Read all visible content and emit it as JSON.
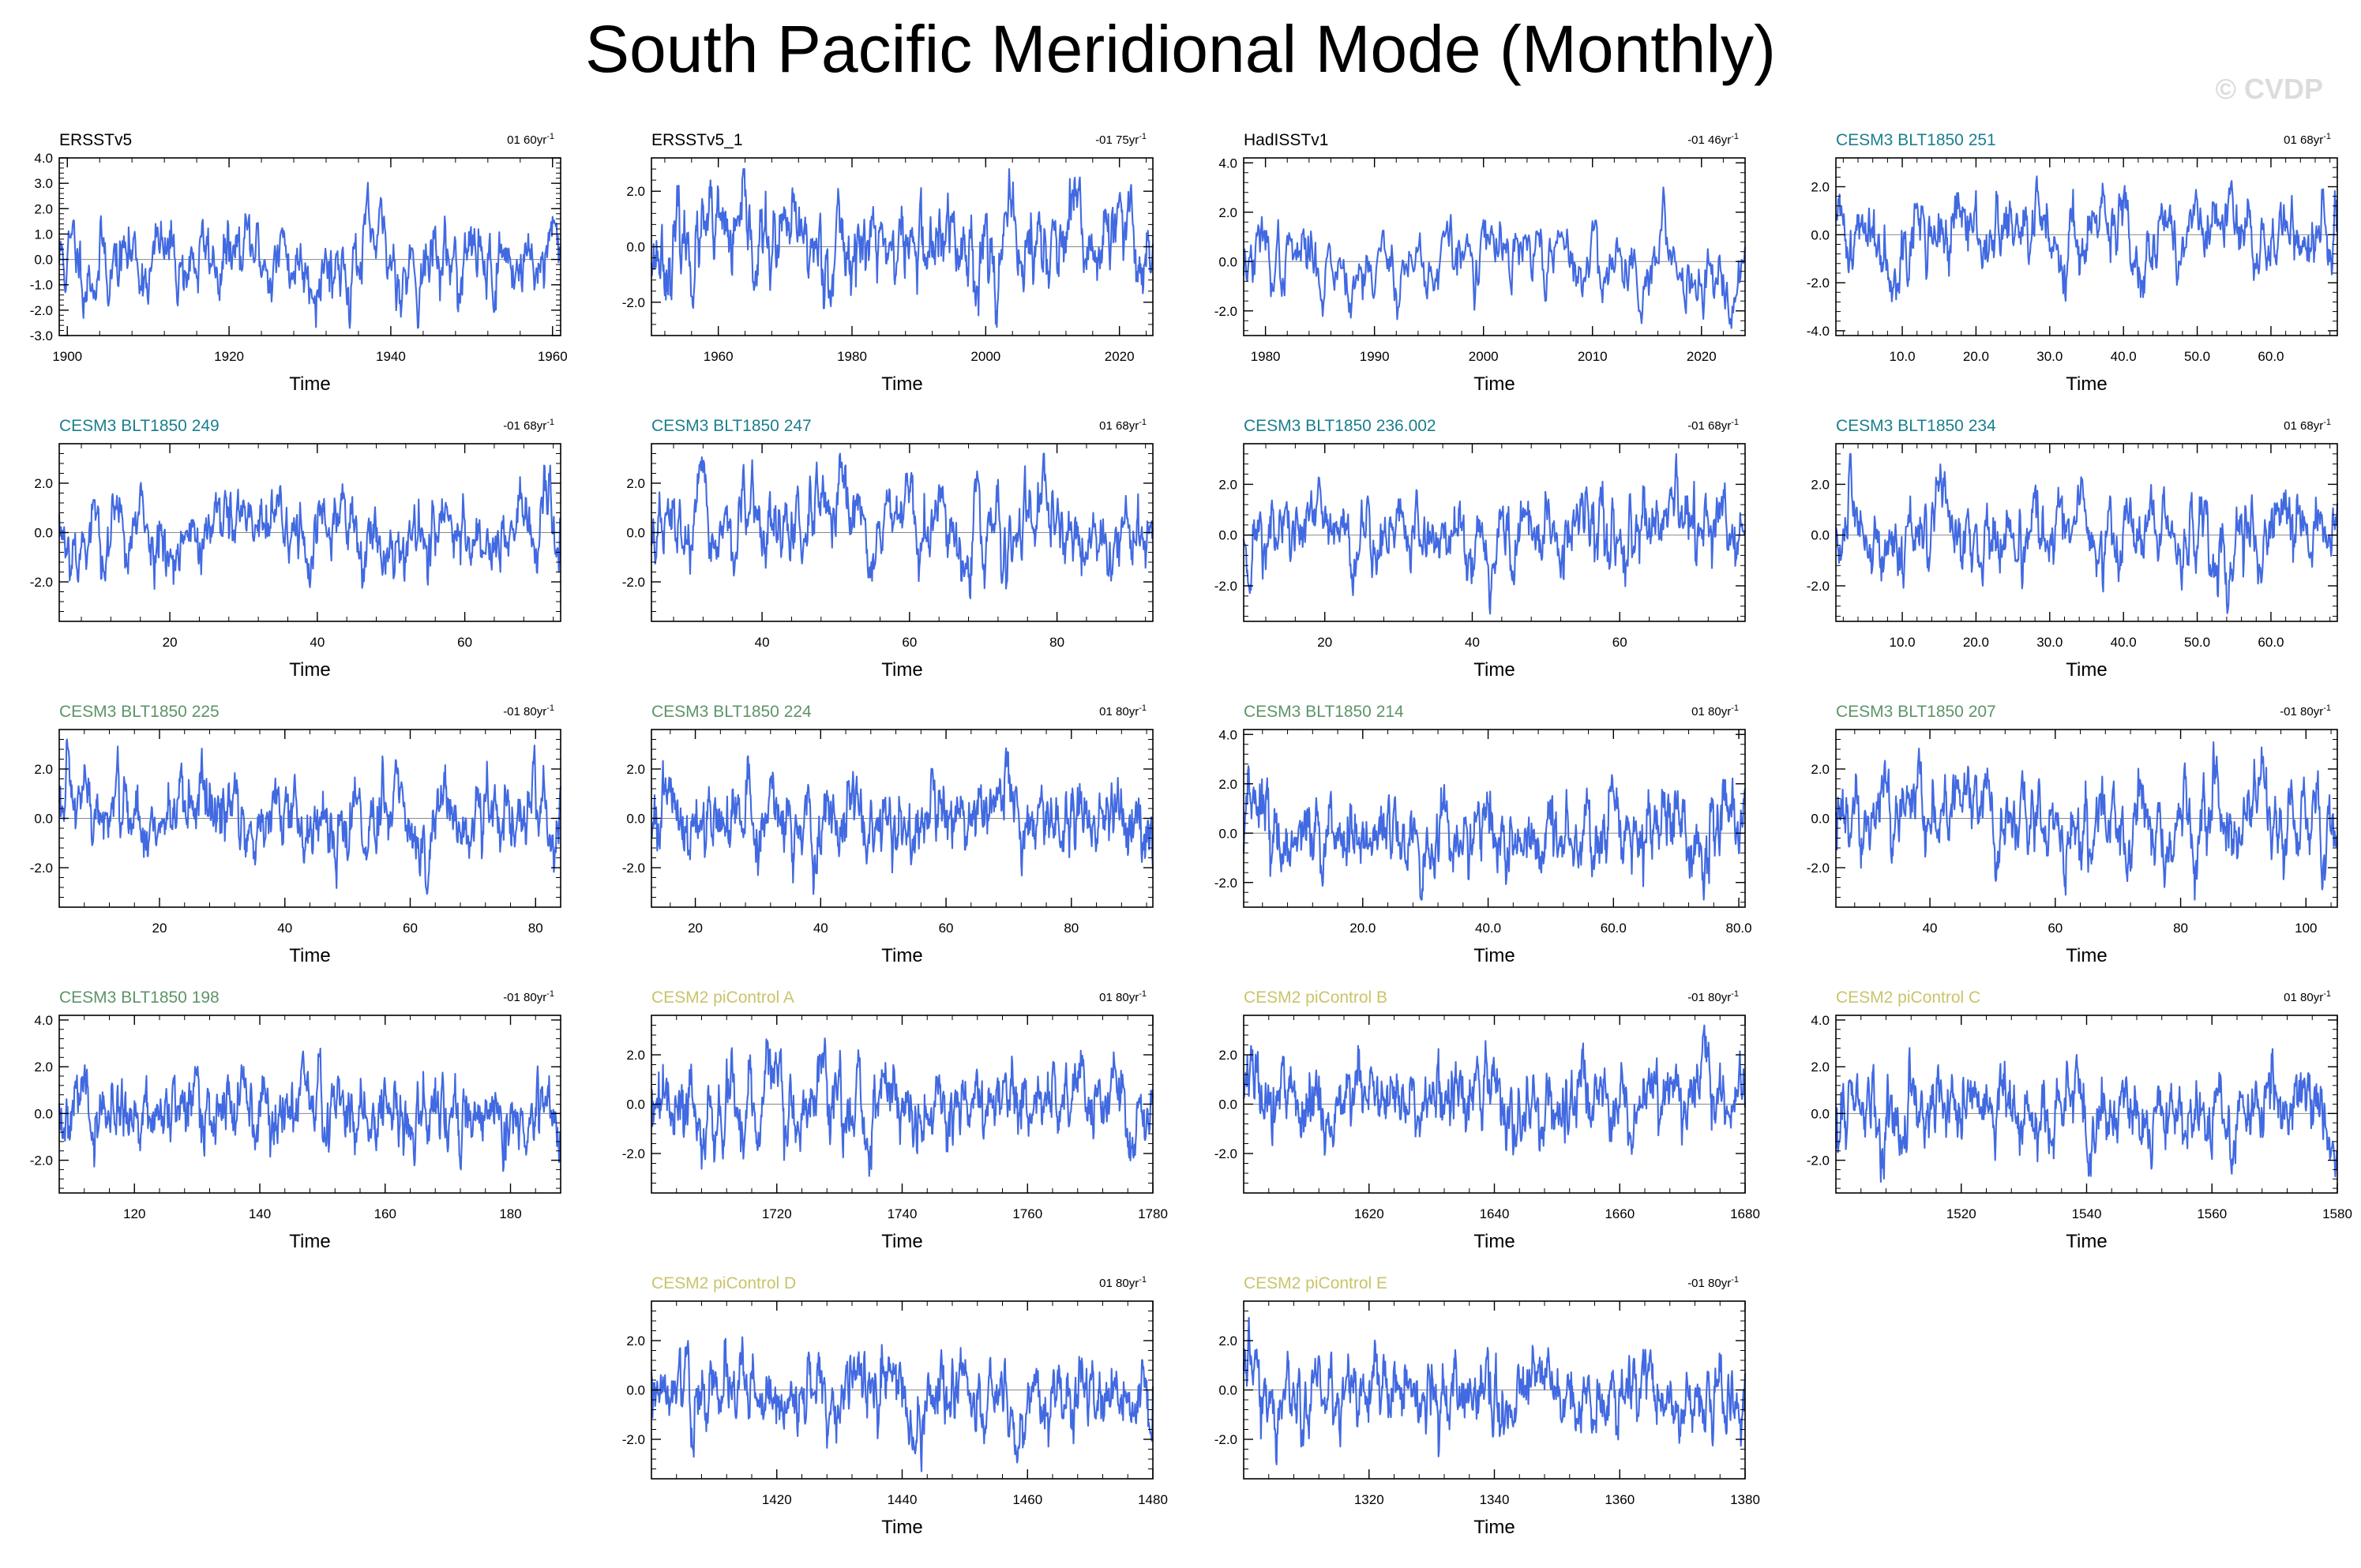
{
  "title": "South Pacific Meridional Mode (Monthly)",
  "watermark": "© CVDP",
  "colors": {
    "line": "#4169e1",
    "obs": "#000000",
    "cesm3_teal": "#1a7f8e",
    "cesm3_green": "#5d9468",
    "cesm2_yellow": "#c9c46a"
  },
  "chart_data": [
    {
      "type": "line",
      "label": "ERSSTv5",
      "color_key": "obs",
      "trend": "01 60yr",
      "xlabel": "Time",
      "xlim": [
        1899,
        1961
      ],
      "xticks": [
        1900,
        1920,
        1940,
        1960
      ],
      "xtick_labels": [
        "1900",
        "1920",
        "1940",
        "1960"
      ],
      "ylim": [
        -3,
        4
      ],
      "yticks": [
        -3,
        -2,
        -1,
        0,
        1,
        2,
        3,
        4
      ],
      "ytick_labels": [
        "-3.0",
        "-2.0",
        "-1.0",
        "0.0",
        "1.0",
        "2.0",
        "3.0",
        "4.0"
      ],
      "seed": 11
    },
    {
      "type": "line",
      "label": "ERSSTv5_1",
      "color_key": "obs",
      "trend": "-01 75yr",
      "xlabel": "Time",
      "xlim": [
        1950,
        2025
      ],
      "xticks": [
        1960,
        1980,
        2000,
        2020
      ],
      "xtick_labels": [
        "1960",
        "1980",
        "2000",
        "2020"
      ],
      "ylim": [
        -3.2,
        3.2
      ],
      "yticks": [
        -2,
        0,
        2
      ],
      "ytick_labels": [
        "-2.0",
        "0.0",
        "2.0"
      ],
      "seed": 23
    },
    {
      "type": "line",
      "label": "HadISSTv1",
      "color_key": "obs",
      "trend": "-01 46yr",
      "xlabel": "Time",
      "xlim": [
        1978,
        2024
      ],
      "xticks": [
        1980,
        1990,
        2000,
        2010,
        2020
      ],
      "xtick_labels": [
        "1980",
        "1990",
        "2000",
        "2010",
        "2020"
      ],
      "ylim": [
        -3,
        4.2
      ],
      "yticks": [
        -2,
        0,
        2,
        4
      ],
      "ytick_labels": [
        "-2.0",
        "0.0",
        "2.0",
        "4.0"
      ],
      "seed": 37
    },
    {
      "type": "line",
      "label": "CESM3 BLT1850 251",
      "color_key": "cesm3_teal",
      "trend": "01 68yr",
      "xlabel": "Time",
      "xlim": [
        1,
        69
      ],
      "xticks": [
        10,
        20,
        30,
        40,
        50,
        60
      ],
      "xtick_labels": [
        "10.0",
        "20.0",
        "30.0",
        "40.0",
        "50.0",
        "60.0"
      ],
      "ylim": [
        -4.2,
        3.2
      ],
      "yticks": [
        -4,
        -2,
        0,
        2
      ],
      "ytick_labels": [
        "-4.0",
        "-2.0",
        "0.0",
        "2.0"
      ],
      "seed": 41
    },
    {
      "type": "line",
      "label": "CESM3 BLT1850 249",
      "color_key": "cesm3_teal",
      "trend": "-01 68yr",
      "xlabel": "Time",
      "xlim": [
        5,
        73
      ],
      "xticks": [
        20,
        40,
        60
      ],
      "xtick_labels": [
        "20",
        "40",
        "60"
      ],
      "ylim": [
        -3.6,
        3.6
      ],
      "yticks": [
        -2,
        0,
        2
      ],
      "ytick_labels": [
        "-2.0",
        "0.0",
        "2.0"
      ],
      "seed": 53
    },
    {
      "type": "line",
      "label": "CESM3 BLT1850 247",
      "color_key": "cesm3_teal",
      "trend": "01 68yr",
      "xlabel": "Time",
      "xlim": [
        25,
        93
      ],
      "xticks": [
        40,
        60,
        80
      ],
      "xtick_labels": [
        "40",
        "60",
        "80"
      ],
      "ylim": [
        -3.6,
        3.6
      ],
      "yticks": [
        -2,
        0,
        2
      ],
      "ytick_labels": [
        "-2.0",
        "0.0",
        "2.0"
      ],
      "seed": 67
    },
    {
      "type": "line",
      "label": "CESM3 BLT1850 236.002",
      "color_key": "cesm3_teal",
      "trend": "-01 68yr",
      "xlabel": "Time",
      "xlim": [
        9,
        77
      ],
      "xticks": [
        20,
        40,
        60
      ],
      "xtick_labels": [
        "20",
        "40",
        "60"
      ],
      "ylim": [
        -3.4,
        3.6
      ],
      "yticks": [
        -2,
        0,
        2
      ],
      "ytick_labels": [
        "-2.0",
        "0.0",
        "2.0"
      ],
      "seed": 71
    },
    {
      "type": "line",
      "label": "CESM3 BLT1850 234",
      "color_key": "cesm3_teal",
      "trend": "01 68yr",
      "xlabel": "Time",
      "xlim": [
        1,
        69
      ],
      "xticks": [
        10,
        20,
        30,
        40,
        50,
        60
      ],
      "xtick_labels": [
        "10.0",
        "20.0",
        "30.0",
        "40.0",
        "50.0",
        "60.0"
      ],
      "ylim": [
        -3.4,
        3.6
      ],
      "yticks": [
        -2,
        0,
        2
      ],
      "ytick_labels": [
        "-2.0",
        "0.0",
        "2.0"
      ],
      "seed": 83
    },
    {
      "type": "line",
      "label": "CESM3 BLT1850 225",
      "color_key": "cesm3_green",
      "trend": "-01 80yr",
      "xlabel": "Time",
      "xlim": [
        4,
        84
      ],
      "xticks": [
        20,
        40,
        60,
        80
      ],
      "xtick_labels": [
        "20",
        "40",
        "60",
        "80"
      ],
      "ylim": [
        -3.6,
        3.6
      ],
      "yticks": [
        -2,
        0,
        2
      ],
      "ytick_labels": [
        "-2.0",
        "0.0",
        "2.0"
      ],
      "seed": 97
    },
    {
      "type": "line",
      "label": "CESM3 BLT1850 224",
      "color_key": "cesm3_green",
      "trend": "01 80yr",
      "xlabel": "Time",
      "xlim": [
        13,
        93
      ],
      "xticks": [
        20,
        40,
        60,
        80
      ],
      "xtick_labels": [
        "20",
        "40",
        "60",
        "80"
      ],
      "ylim": [
        -3.6,
        3.6
      ],
      "yticks": [
        -2,
        0,
        2
      ],
      "ytick_labels": [
        "-2.0",
        "0.0",
        "2.0"
      ],
      "seed": 101
    },
    {
      "type": "line",
      "label": "CESM3 BLT1850 214",
      "color_key": "cesm3_green",
      "trend": "01 80yr",
      "xlabel": "Time",
      "xlim": [
        1,
        81
      ],
      "xticks": [
        20,
        40,
        60,
        80
      ],
      "xtick_labels": [
        "20.0",
        "40.0",
        "60.0",
        "80.0"
      ],
      "ylim": [
        -3,
        4.2
      ],
      "yticks": [
        -2,
        0,
        2,
        4
      ],
      "ytick_labels": [
        "-2.0",
        "0.0",
        "2.0",
        "4.0"
      ],
      "seed": 113
    },
    {
      "type": "line",
      "label": "CESM3 BLT1850 207",
      "color_key": "cesm3_green",
      "trend": "-01 80yr",
      "xlabel": "Time",
      "xlim": [
        25,
        105
      ],
      "xticks": [
        40,
        60,
        80,
        100
      ],
      "xtick_labels": [
        "40",
        "60",
        "80",
        "100"
      ],
      "ylim": [
        -3.6,
        3.6
      ],
      "yticks": [
        -2,
        0,
        2
      ],
      "ytick_labels": [
        "-2.0",
        "0.0",
        "2.0"
      ],
      "seed": 127
    },
    {
      "type": "line",
      "label": "CESM3 BLT1850 198",
      "color_key": "cesm3_green",
      "trend": "-01 80yr",
      "xlabel": "Time",
      "xlim": [
        108,
        188
      ],
      "xticks": [
        120,
        140,
        160,
        180
      ],
      "xtick_labels": [
        "120",
        "140",
        "160",
        "180"
      ],
      "ylim": [
        -3.4,
        4.2
      ],
      "yticks": [
        -2,
        0,
        2,
        4
      ],
      "ytick_labels": [
        "-2.0",
        "0.0",
        "2.0",
        "4.0"
      ],
      "seed": 131
    },
    {
      "type": "line",
      "label": "CESM2 piControl A",
      "color_key": "cesm2_yellow",
      "trend": "01 80yr",
      "xlabel": "Time",
      "xlim": [
        1700,
        1780
      ],
      "xticks": [
        1720,
        1740,
        1760,
        1780
      ],
      "xtick_labels": [
        "1720",
        "1740",
        "1760",
        "1780"
      ],
      "ylim": [
        -3.6,
        3.6
      ],
      "yticks": [
        -2,
        0,
        2
      ],
      "ytick_labels": [
        "-2.0",
        "0.0",
        "2.0"
      ],
      "seed": 139
    },
    {
      "type": "line",
      "label": "CESM2 piControl B",
      "color_key": "cesm2_yellow",
      "trend": "-01 80yr",
      "xlabel": "Time",
      "xlim": [
        1600,
        1680
      ],
      "xticks": [
        1620,
        1640,
        1660,
        1680
      ],
      "xtick_labels": [
        "1620",
        "1640",
        "1660",
        "1680"
      ],
      "ylim": [
        -3.6,
        3.6
      ],
      "yticks": [
        -2,
        0,
        2
      ],
      "ytick_labels": [
        "-2.0",
        "0.0",
        "2.0"
      ],
      "seed": 149
    },
    {
      "type": "line",
      "label": "CESM2 piControl C",
      "color_key": "cesm2_yellow",
      "trend": "01 80yr",
      "xlabel": "Time",
      "xlim": [
        1500,
        1580
      ],
      "xticks": [
        1520,
        1540,
        1560,
        1580
      ],
      "xtick_labels": [
        "1520",
        "1540",
        "1560",
        "1580"
      ],
      "ylim": [
        -3.4,
        4.2
      ],
      "yticks": [
        -2,
        0,
        2,
        4
      ],
      "ytick_labels": [
        "-2.0",
        "0.0",
        "2.0",
        "4.0"
      ],
      "seed": 157
    },
    {
      "type": "line",
      "label": "CESM2 piControl D",
      "color_key": "cesm2_yellow",
      "trend": "01 80yr",
      "xlabel": "Time",
      "xlim": [
        1400,
        1480
      ],
      "xticks": [
        1420,
        1440,
        1460,
        1480
      ],
      "xtick_labels": [
        "1420",
        "1440",
        "1460",
        "1480"
      ],
      "ylim": [
        -3.6,
        3.6
      ],
      "yticks": [
        -2,
        0,
        2
      ],
      "ytick_labels": [
        "-2.0",
        "0.0",
        "2.0"
      ],
      "seed": 163
    },
    {
      "type": "line",
      "label": "CESM2 piControl E",
      "color_key": "cesm2_yellow",
      "trend": "-01 80yr",
      "xlabel": "Time",
      "xlim": [
        1300,
        1380
      ],
      "xticks": [
        1320,
        1340,
        1360,
        1380
      ],
      "xtick_labels": [
        "1320",
        "1340",
        "1360",
        "1380"
      ],
      "ylim": [
        -3.6,
        3.6
      ],
      "yticks": [
        -2,
        0,
        2
      ],
      "ytick_labels": [
        "-2.0",
        "0.0",
        "2.0"
      ],
      "seed": 173
    }
  ]
}
